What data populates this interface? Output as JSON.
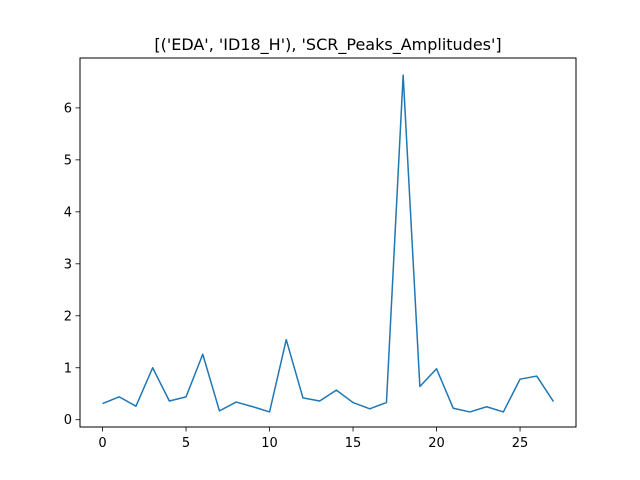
{
  "chart_data": {
    "type": "line",
    "title": "[('EDA', 'ID18_H'), 'SCR_Peaks_Amplitudes']",
    "xlabel": "",
    "ylabel": "",
    "x": [
      0,
      1,
      2,
      3,
      4,
      5,
      6,
      7,
      8,
      9,
      10,
      11,
      12,
      13,
      14,
      15,
      16,
      17,
      18,
      19,
      20,
      21,
      22,
      23,
      24,
      25,
      26,
      27
    ],
    "series": [
      {
        "color": "#1f77b4",
        "values": [
          0.31,
          0.44,
          0.26,
          1.0,
          0.36,
          0.44,
          1.26,
          0.17,
          0.34,
          0.25,
          0.15,
          1.54,
          0.42,
          0.36,
          0.57,
          0.33,
          0.21,
          0.33,
          6.63,
          0.64,
          0.98,
          0.22,
          0.15,
          0.25,
          0.15,
          0.78,
          0.84,
          0.35
        ]
      }
    ],
    "xlim": [
      -1.35,
      28.35
    ],
    "ylim": [
      -0.14,
      6.96
    ],
    "xticks": [
      0,
      5,
      10,
      15,
      20,
      25
    ],
    "yticks": [
      0,
      1,
      2,
      3,
      4,
      5,
      6
    ],
    "grid": false,
    "legend": "none"
  }
}
